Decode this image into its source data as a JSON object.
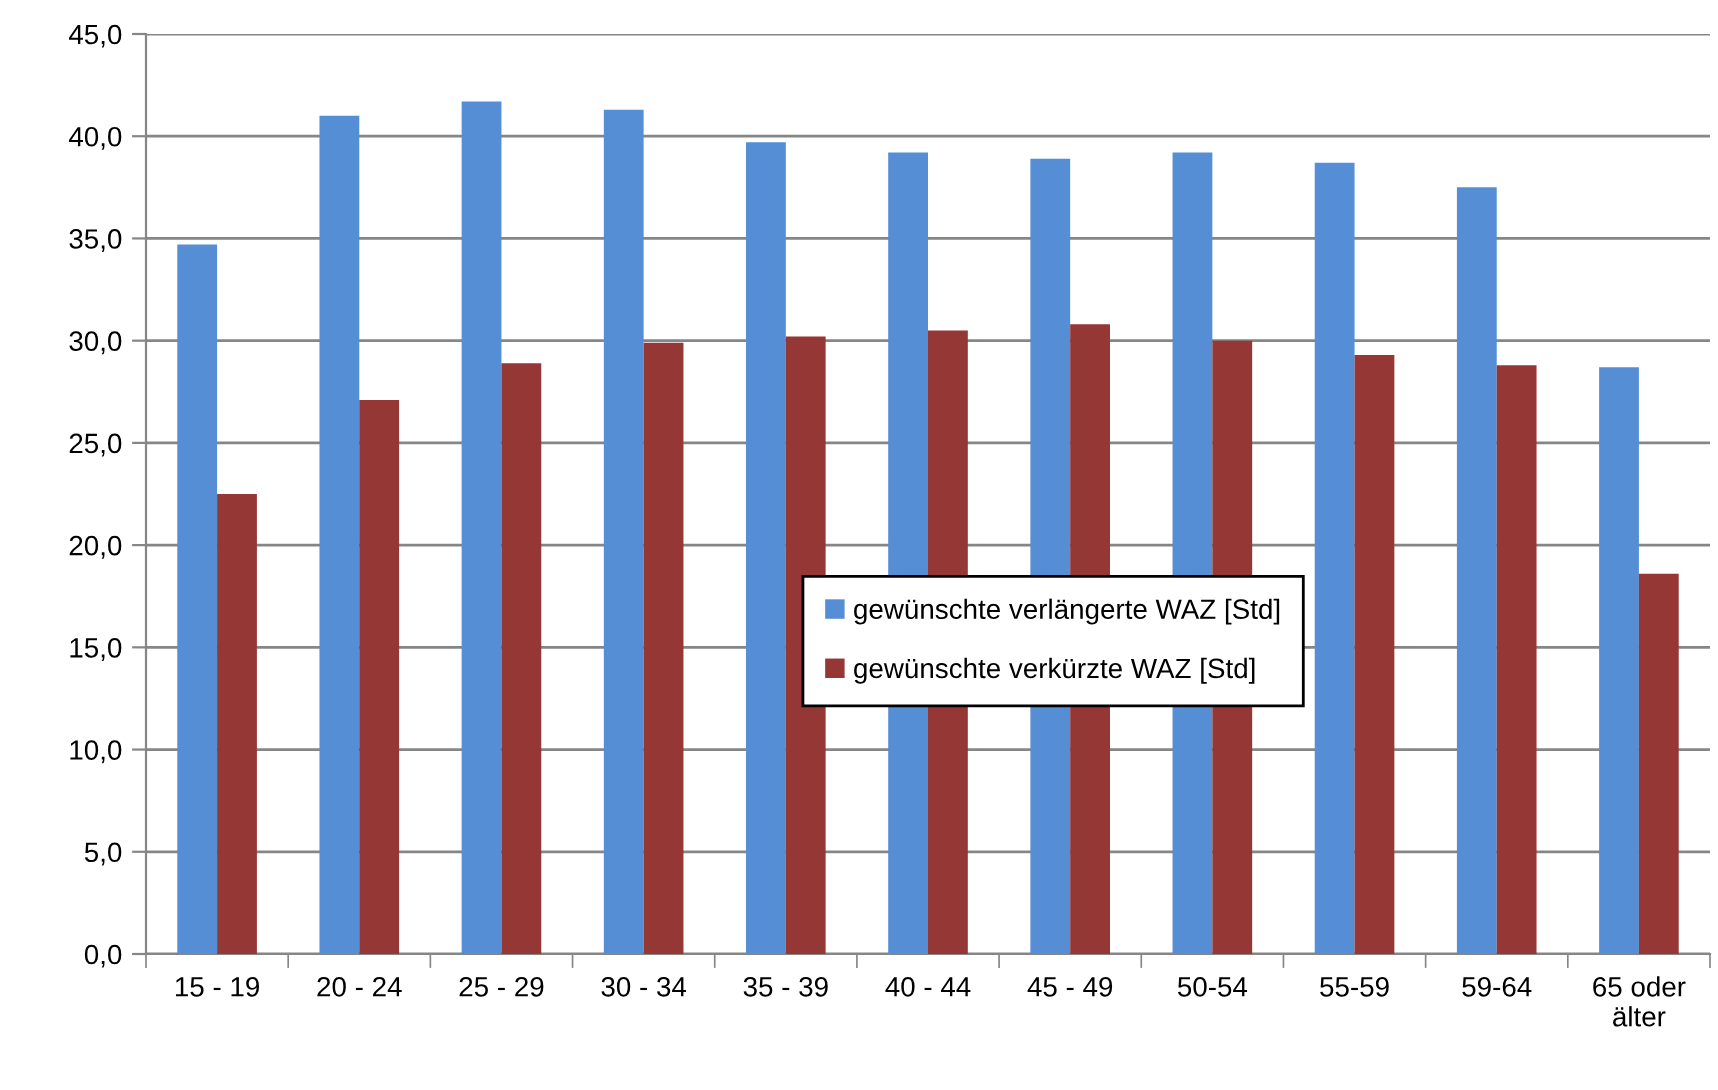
{
  "chart_data": {
    "type": "bar",
    "categories": [
      "15 - 19",
      "20 - 24",
      "25 - 29",
      "30 - 34",
      "35 - 39",
      "40 - 44",
      "45 - 49",
      "50-54",
      "55-59",
      "59-64",
      "65 oder\nälter"
    ],
    "series": [
      {
        "name": "gewünschte verlängerte WAZ [Std]",
        "color": "#558ed5",
        "values": [
          34.7,
          41.0,
          41.7,
          41.3,
          39.7,
          39.2,
          38.9,
          39.2,
          38.7,
          37.5,
          28.7
        ]
      },
      {
        "name": "gewünschte verkürzte WAZ [Std]",
        "color": "#953735",
        "values": [
          22.5,
          27.1,
          28.9,
          29.9,
          30.2,
          30.5,
          30.8,
          30.0,
          29.3,
          28.8,
          18.6
        ]
      }
    ],
    "ylim": [
      0,
      45
    ],
    "yticks": [
      {
        "value": 0,
        "label": "0,0"
      },
      {
        "value": 5,
        "label": "5,0"
      },
      {
        "value": 10,
        "label": "10,0"
      },
      {
        "value": 15,
        "label": "15,0"
      },
      {
        "value": 20,
        "label": "20,0"
      },
      {
        "value": 25,
        "label": "25,0"
      },
      {
        "value": 30,
        "label": "30,0"
      },
      {
        "value": 35,
        "label": "35,0"
      },
      {
        "value": 40,
        "label": "40,0"
      },
      {
        "value": 45,
        "label": "45,0"
      }
    ],
    "grid": "y",
    "legend": "center"
  }
}
